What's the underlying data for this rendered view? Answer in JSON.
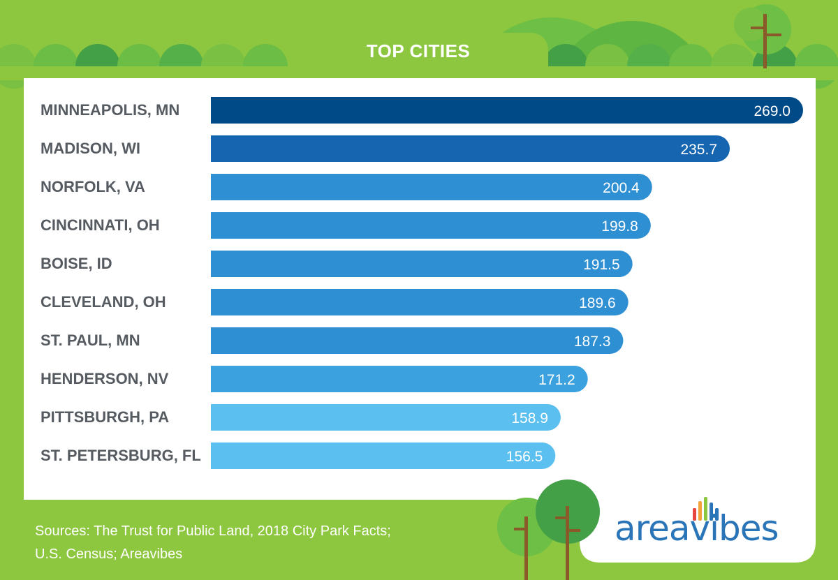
{
  "header": {
    "title": "TOP CITIES"
  },
  "footer": {
    "line1": "Sources: The Trust for Public Land, 2018 City Park Facts;",
    "line2": "U.S. Census; Areavibes"
  },
  "logo": {
    "text": "areavibes",
    "bars_colors": [
      "#e8473f",
      "#f2a33a",
      "#8dc63f",
      "#2a74b8"
    ]
  },
  "colors": {
    "background": "#8dc63f",
    "panel": "#ffffff",
    "label": "#555b60"
  },
  "chart_data": {
    "type": "bar",
    "orientation": "horizontal",
    "title": "TOP CITIES",
    "categories": [
      "MINNEAPOLIS, MN",
      "MADISON, WI",
      "NORFOLK, VA",
      "CINCINNATI, OH",
      "BOISE, ID",
      "CLEVELAND, OH",
      "ST. PAUL, MN",
      "HENDERSON, NV",
      "PITTSBURGH, PA",
      "ST. PETERSBURG, FL"
    ],
    "values": [
      269.0,
      235.7,
      200.4,
      199.8,
      191.5,
      189.6,
      187.3,
      171.2,
      158.9,
      156.5
    ],
    "value_labels": [
      "269.0",
      "235.7",
      "200.4",
      "199.8",
      "191.5",
      "189.6",
      "187.3",
      "171.2",
      "158.9",
      "156.5"
    ],
    "bar_colors": [
      "#004a87",
      "#1565b0",
      "#2f8fd3",
      "#2f8fd3",
      "#2f8fd3",
      "#2f8fd3",
      "#2f8fd3",
      "#3ba1df",
      "#5bc0ef",
      "#5bc0ef"
    ],
    "xlim": [
      0,
      269
    ],
    "grid": false
  }
}
